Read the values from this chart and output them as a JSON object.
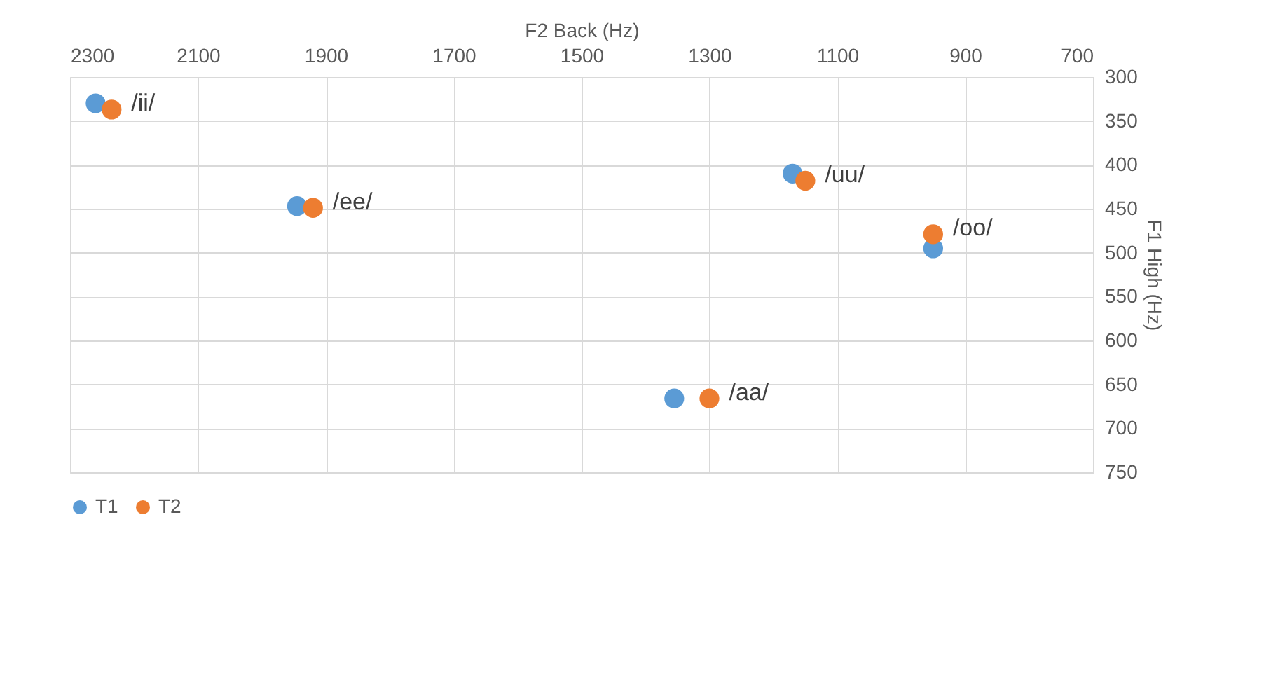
{
  "chart_data": {
    "type": "scatter",
    "xlabel": "F2 Back (Hz)",
    "ylabel": "F1 High (Hz)",
    "x": [
      2260,
      1945,
      1170,
      950,
      1355
    ],
    "series": [
      {
        "name": "T1",
        "color": "#5b9bd5",
        "values": [
          330,
          447,
          410,
          495,
          666
        ]
      },
      {
        "name": "T2",
        "color": "#ed7d31",
        "x": [
          2235,
          1920,
          1150,
          950,
          1300
        ],
        "values": [
          337,
          449,
          418,
          479,
          666
        ]
      }
    ],
    "annotations": [
      {
        "text": "/ii/",
        "x": 2235,
        "y": 337
      },
      {
        "text": "/ee/",
        "x": 1920,
        "y": 449
      },
      {
        "text": "/uu/",
        "x": 1150,
        "y": 418
      },
      {
        "text": "/oo/",
        "x": 950,
        "y": 479
      },
      {
        "text": "/aa/",
        "x": 1300,
        "y": 666
      }
    ],
    "xlim": [
      2300,
      700
    ],
    "xticks": [
      2300,
      2100,
      1900,
      1700,
      1500,
      1300,
      1100,
      900,
      700
    ],
    "ylim": [
      750,
      300
    ],
    "yticks": [
      300,
      350,
      400,
      450,
      500,
      550,
      600,
      650,
      700,
      750
    ],
    "grid": true,
    "legend": "bottom",
    "marker": "circle"
  }
}
